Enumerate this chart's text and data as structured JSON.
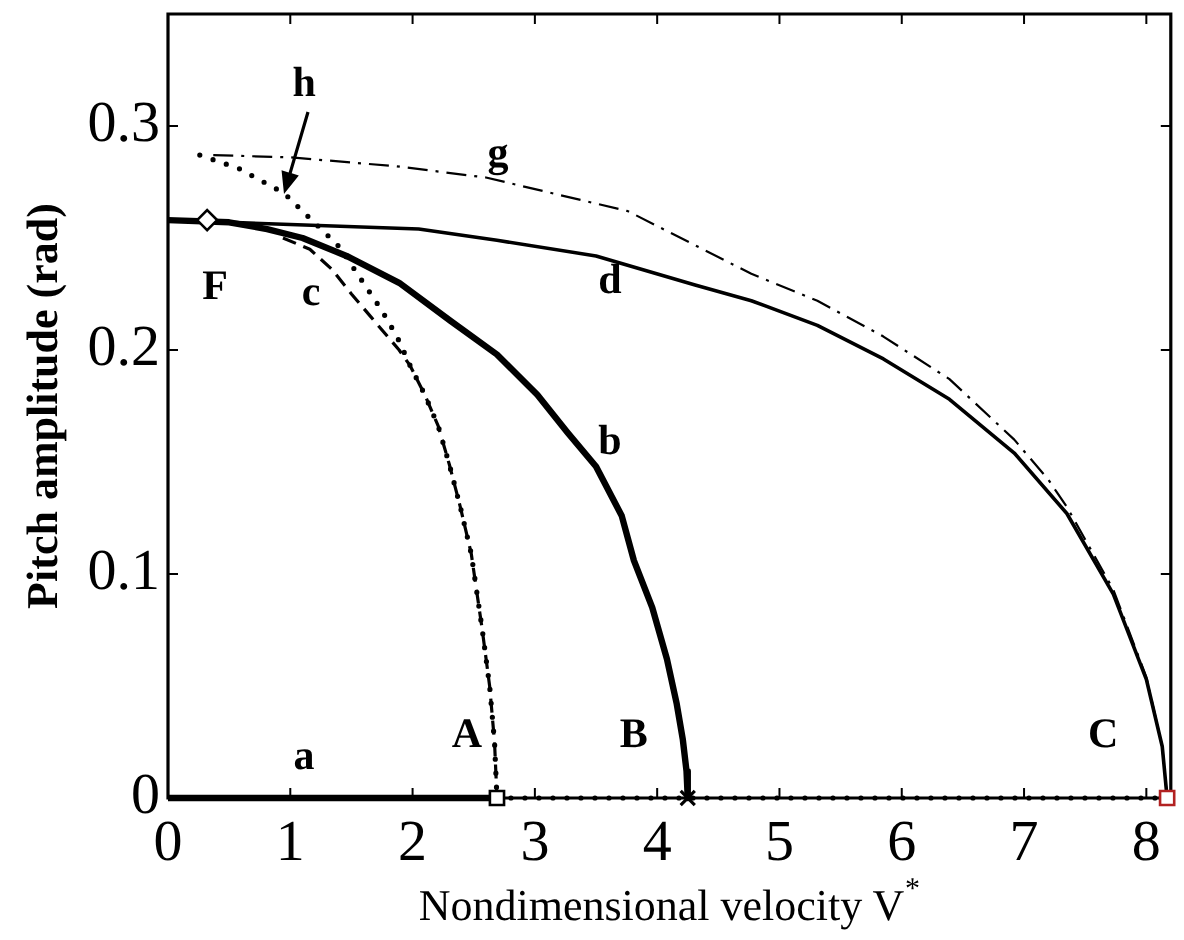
{
  "chart_data": {
    "type": "line",
    "xlabel": "Nondimensional velocity V$^{*}$",
    "ylabel": "Pitch amplitude (rad)",
    "xlim": [
      0,
      8.2
    ],
    "ylim": [
      0,
      0.35
    ],
    "xticks": [
      0,
      1,
      2,
      3,
      4,
      5,
      6,
      7,
      8
    ],
    "yticks": [
      0,
      0.1,
      0.2,
      0.3
    ],
    "series": [
      {
        "name": "a",
        "color": "#000000",
        "line_style": "solid",
        "x": [
          0,
          2.69
        ],
        "values": [
          0,
          0
        ]
      },
      {
        "color": "#000000",
        "line_style": "dotted",
        "x": [
          2.69,
          8.17
        ],
        "values": [
          0,
          0
        ]
      },
      {
        "name": "b",
        "color": "#000000",
        "line_style": "solid",
        "x": [
          0,
          0.5,
          0.81,
          1.1,
          1.46,
          1.89,
          2.31,
          2.69,
          3.02,
          3.27,
          3.5,
          3.71,
          3.81,
          3.96,
          4.08,
          4.16,
          4.21,
          4.24,
          4.25
        ],
        "values": [
          0.258,
          0.257,
          0.254,
          0.25,
          0.242,
          0.23,
          0.213,
          0.198,
          0.18,
          0.163,
          0.148,
          0.126,
          0.106,
          0.085,
          0.062,
          0.042,
          0.026,
          0.012,
          0
        ]
      },
      {
        "name": "c",
        "color": "#000000",
        "line_style": "dashed",
        "x": [
          0.94,
          1.16,
          1.34,
          1.5,
          1.64,
          1.78,
          1.89,
          1.98,
          2.1,
          2.21,
          2.3,
          2.39,
          2.48,
          2.57,
          2.63,
          2.67,
          2.69
        ],
        "values": [
          0.25,
          0.245,
          0.236,
          0.225,
          0.216,
          0.207,
          0.2,
          0.193,
          0.18,
          0.166,
          0.149,
          0.13,
          0.109,
          0.075,
          0.05,
          0.025,
          0
        ]
      },
      {
        "name": "d",
        "color": "#000000",
        "line_style": "solid",
        "x": [
          0,
          0.5,
          1.0,
          2.05,
          2.69,
          3.5,
          4.31,
          4.77,
          5.31,
          5.85,
          6.39,
          6.92,
          7.35,
          7.73,
          8.0,
          8.13,
          8.17
        ],
        "values": [
          0.258,
          0.257,
          0.256,
          0.254,
          0.249,
          0.242,
          0.229,
          0.222,
          0.211,
          0.196,
          0.178,
          0.154,
          0.127,
          0.091,
          0.053,
          0.023,
          0
        ]
      },
      {
        "name": "g",
        "color": "#000000",
        "line_style": "dashdot",
        "x": [
          0.37,
          1.0,
          1.87,
          2.6,
          3.76,
          4.77,
          5.31,
          5.85,
          6.39,
          6.92,
          7.2,
          7.35,
          7.73,
          8.0,
          8.13,
          8.17
        ],
        "values": [
          0.287,
          0.286,
          0.282,
          0.277,
          0.262,
          0.234,
          0.222,
          0.206,
          0.187,
          0.16,
          0.142,
          0.13,
          0.093,
          0.054,
          0.023,
          0
        ]
      },
      {
        "color": "#000000",
        "line_style": "dotted",
        "x": [
          0.26,
          0.58,
          0.95,
          1.1,
          1.29,
          1.42,
          1.5,
          1.61,
          1.72,
          1.8,
          1.89,
          1.98,
          2.1,
          2.21,
          2.3,
          2.39,
          2.48,
          2.57,
          2.63,
          2.67,
          2.69
        ],
        "values": [
          0.287,
          0.281,
          0.27,
          0.262,
          0.252,
          0.245,
          0.238,
          0.229,
          0.22,
          0.213,
          0.204,
          0.193,
          0.18,
          0.166,
          0.149,
          0.13,
          0.109,
          0.075,
          0.05,
          0.025,
          0
        ]
      },
      {
        "type": "scatter",
        "marker": "diamond",
        "color": "#000000",
        "x": [
          0.32
        ],
        "values": [
          0.258
        ]
      },
      {
        "type": "scatter",
        "marker": "square",
        "color": "#000000",
        "x": [
          2.69
        ],
        "values": [
          0
        ]
      },
      {
        "type": "scatter",
        "marker": "cross",
        "color": "#000000",
        "x": [
          4.25
        ],
        "values": [
          0
        ]
      },
      {
        "type": "scatter",
        "marker": "square",
        "color": "#b22222",
        "x": [
          8.17
        ],
        "values": [
          0
        ]
      }
    ],
    "annotations": [
      {
        "text": "F",
        "x": 0.32,
        "y": 0.258
      },
      {
        "text": "A",
        "x": 2.69,
        "y": 0
      },
      {
        "text": "B",
        "x": 4.25,
        "y": 0
      },
      {
        "text": "C",
        "x": 8.17,
        "y": 0
      },
      {
        "text": "h",
        "x": 0.95,
        "y": 0.27
      }
    ]
  }
}
